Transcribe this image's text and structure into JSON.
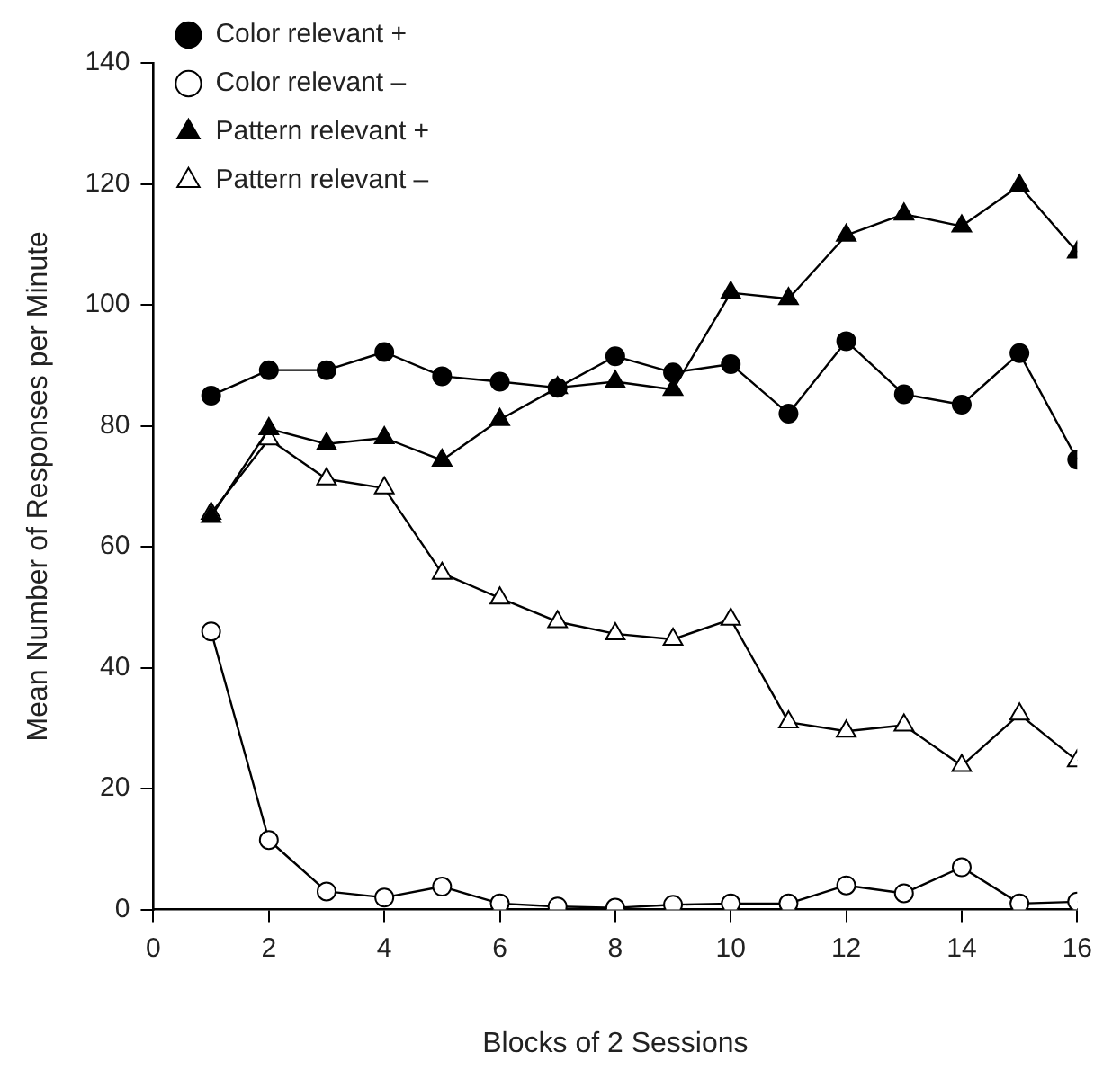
{
  "chart_data": {
    "type": "line",
    "xlabel": "Blocks of 2 Sessions",
    "ylabel": "Mean Number of Responses per Minute",
    "x": [
      1,
      2,
      3,
      4,
      5,
      6,
      7,
      8,
      9,
      10,
      11,
      12,
      13,
      14,
      15,
      16
    ],
    "xlim": [
      0,
      16
    ],
    "xticks": [
      0,
      2,
      4,
      6,
      8,
      10,
      12,
      14,
      16
    ],
    "ylim": [
      0,
      140
    ],
    "yticks": [
      0,
      20,
      40,
      60,
      80,
      100,
      120,
      140
    ],
    "grid": false,
    "legend": "top left",
    "line_style": "solid",
    "series": [
      {
        "name": "Color relevant +",
        "color": "#000000",
        "marker": "circle",
        "values": [
          85,
          89.2,
          89.2,
          92.2,
          88.2,
          87.3,
          86.3,
          91.5,
          88.8,
          90.2,
          82,
          94,
          85.2,
          83.5,
          92,
          74.4
        ]
      },
      {
        "name": "Color relevant –",
        "color": "#ffffff",
        "marker": "circle",
        "values": [
          46,
          11.5,
          3,
          2,
          3.8,
          1,
          0.5,
          0.3,
          0.8,
          1,
          1,
          4,
          2.7,
          7,
          1,
          1.3
        ]
      },
      {
        "name": "Pattern relevant +",
        "color": "#000000",
        "marker": "triangle",
        "values": [
          65,
          79.5,
          77,
          78,
          74.3,
          81,
          86.3,
          87.3,
          86,
          102,
          101,
          111.5,
          115,
          113,
          119.7,
          108.7
        ]
      },
      {
        "name": "Pattern relevant –",
        "color": "#ffffff",
        "marker": "triangle",
        "values": [
          65.5,
          77.8,
          71.2,
          69.7,
          55.6,
          51.5,
          47.6,
          45.6,
          44.7,
          48,
          31,
          29.5,
          30.5,
          23.8,
          32.3,
          24.6
        ]
      }
    ]
  }
}
